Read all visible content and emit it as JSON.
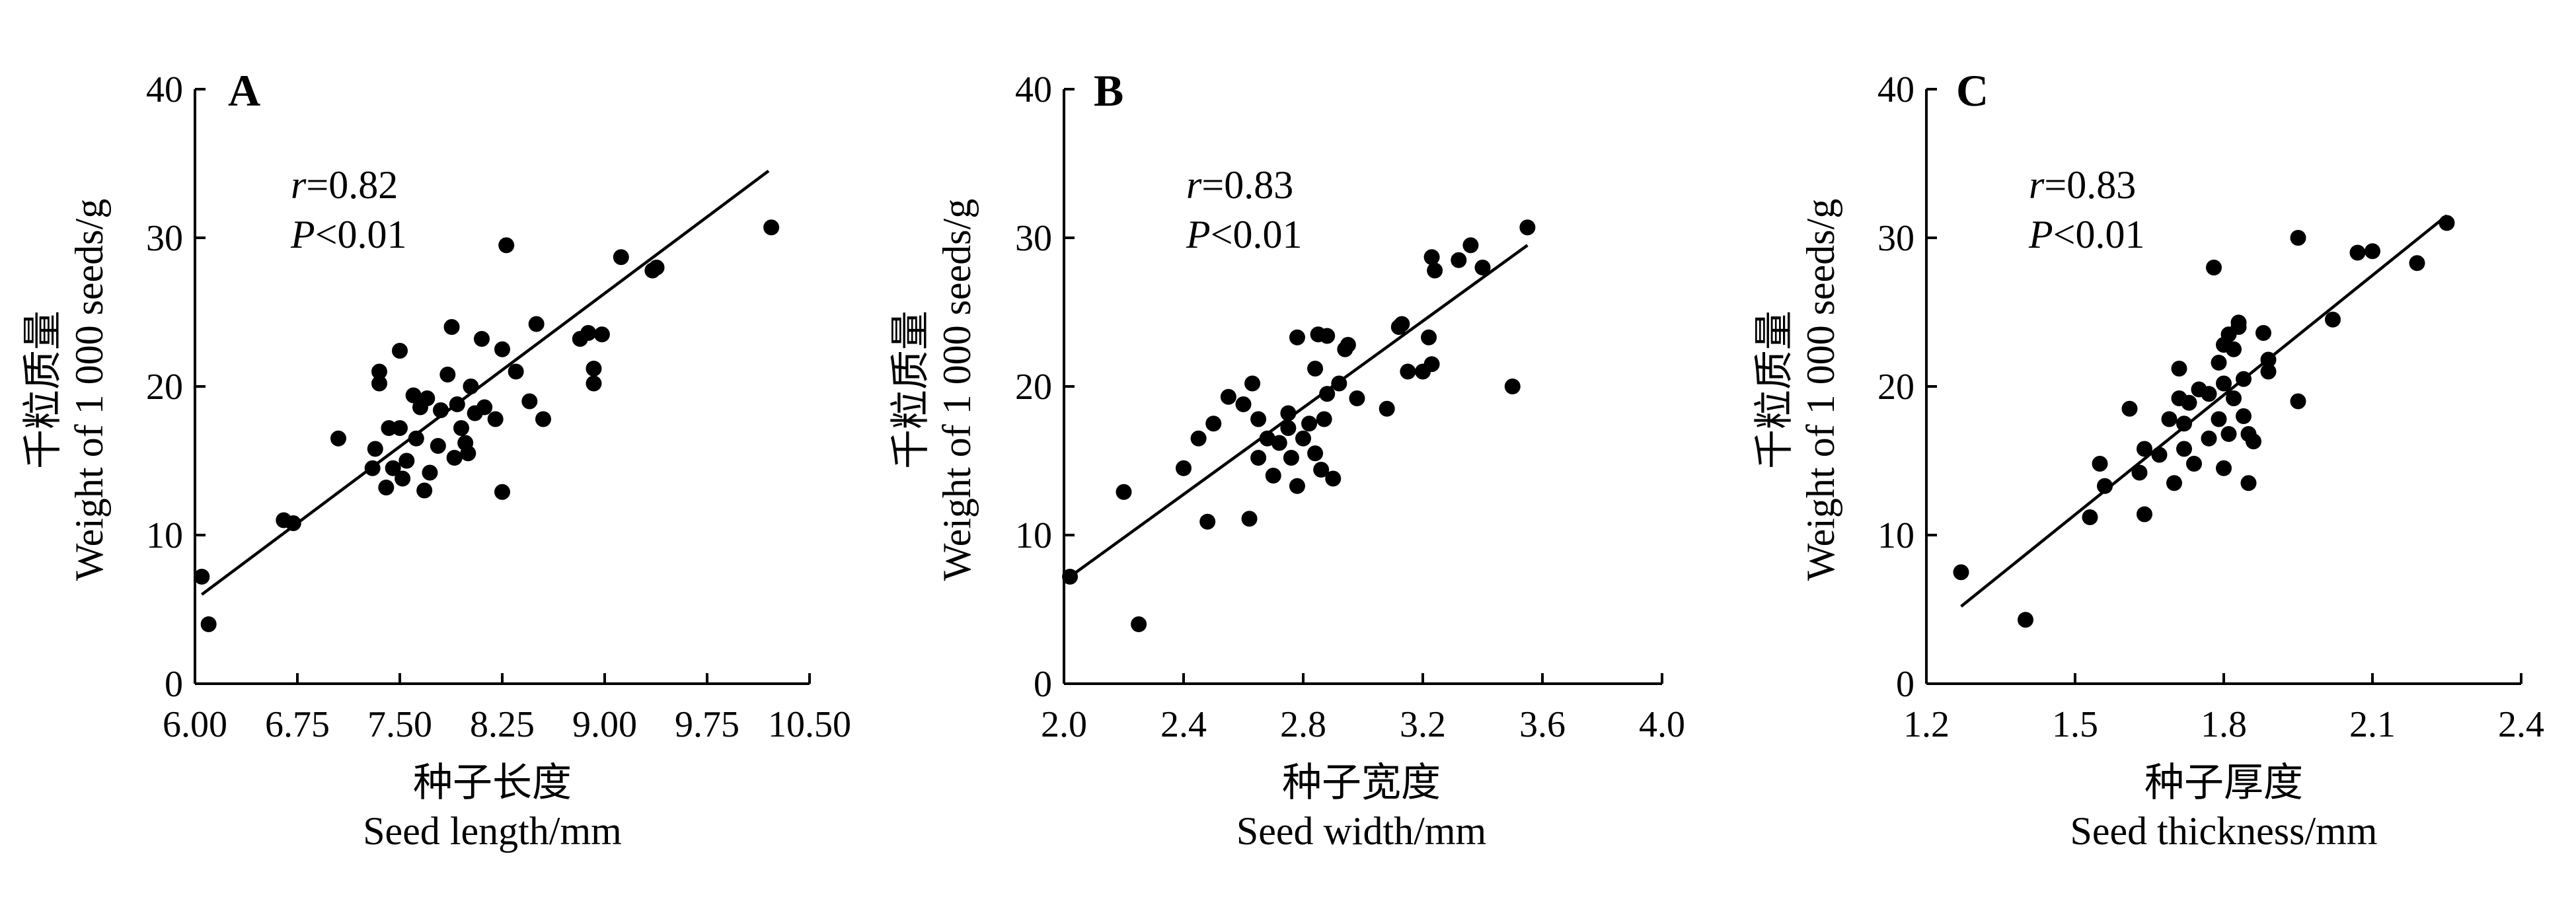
{
  "chart_data": [
    {
      "type": "scatter",
      "panel_label": "A",
      "ylabel_cn": "千粒质量",
      "ylabel_en": "Weight of 1 000 seeds/g",
      "xlabel_cn": "种子长度",
      "xlabel_en": "Seed length/mm",
      "r_symbol": "r",
      "r_value": "=0.82",
      "p_symbol": "P",
      "p_value": "<0.01",
      "xlim": [
        6.0,
        10.5
      ],
      "ylim": [
        0,
        40
      ],
      "xticks": [
        "6.00",
        "6.75",
        "7.50",
        "8.25",
        "9.00",
        "9.75",
        "10.50"
      ],
      "yticks": [
        "0",
        "10",
        "20",
        "30",
        "40"
      ],
      "fit": {
        "x": [
          6.05,
          10.2
        ],
        "y": [
          6.0,
          34.5
        ]
      },
      "points": [
        [
          6.05,
          7.2
        ],
        [
          6.1,
          4.0
        ],
        [
          6.65,
          11.0
        ],
        [
          6.72,
          10.8
        ],
        [
          7.05,
          16.5
        ],
        [
          7.3,
          14.5
        ],
        [
          7.32,
          15.8
        ],
        [
          7.35,
          21.0
        ],
        [
          7.35,
          20.2
        ],
        [
          7.4,
          13.2
        ],
        [
          7.42,
          17.2
        ],
        [
          7.45,
          14.5
        ],
        [
          7.5,
          22.4
        ],
        [
          7.5,
          17.2
        ],
        [
          7.52,
          13.8
        ],
        [
          7.55,
          15.0
        ],
        [
          7.6,
          19.4
        ],
        [
          7.62,
          16.5
        ],
        [
          7.65,
          18.6
        ],
        [
          7.68,
          13.0
        ],
        [
          7.7,
          19.2
        ],
        [
          7.72,
          14.2
        ],
        [
          7.78,
          16.0
        ],
        [
          7.8,
          18.4
        ],
        [
          7.85,
          20.8
        ],
        [
          7.88,
          24.0
        ],
        [
          7.9,
          15.2
        ],
        [
          7.92,
          18.8
        ],
        [
          7.95,
          17.2
        ],
        [
          7.98,
          16.2
        ],
        [
          8.0,
          15.5
        ],
        [
          8.02,
          20.0
        ],
        [
          8.05,
          18.2
        ],
        [
          8.1,
          23.2
        ],
        [
          8.12,
          18.6
        ],
        [
          8.2,
          17.8
        ],
        [
          8.25,
          22.5
        ],
        [
          8.25,
          12.9
        ],
        [
          8.28,
          29.5
        ],
        [
          8.35,
          21.0
        ],
        [
          8.45,
          19.0
        ],
        [
          8.5,
          24.2
        ],
        [
          8.55,
          17.8
        ],
        [
          8.82,
          23.2
        ],
        [
          8.88,
          23.6
        ],
        [
          8.92,
          20.2
        ],
        [
          8.92,
          21.2
        ],
        [
          8.98,
          23.5
        ],
        [
          9.12,
          28.7
        ],
        [
          9.35,
          27.8
        ],
        [
          9.38,
          28.0
        ],
        [
          10.22,
          30.7
        ]
      ]
    },
    {
      "type": "scatter",
      "panel_label": "B",
      "ylabel_cn": "千粒质量",
      "ylabel_en": "Weight of 1 000 seeds/g",
      "xlabel_cn": "种子宽度",
      "xlabel_en": "Seed width/mm",
      "r_symbol": "r",
      "r_value": "=0.83",
      "p_symbol": "P",
      "p_value": "<0.01",
      "xlim": [
        2.0,
        4.0
      ],
      "ylim": [
        0,
        40
      ],
      "xticks": [
        "2.0",
        "2.4",
        "2.8",
        "3.2",
        "3.6",
        "4.0"
      ],
      "yticks": [
        "0",
        "10",
        "20",
        "30",
        "40"
      ],
      "fit": {
        "x": [
          2.02,
          3.55
        ],
        "y": [
          7.2,
          29.5
        ]
      },
      "points": [
        [
          2.02,
          7.2
        ],
        [
          2.2,
          12.9
        ],
        [
          2.25,
          4.0
        ],
        [
          2.4,
          14.5
        ],
        [
          2.45,
          16.5
        ],
        [
          2.48,
          10.9
        ],
        [
          2.5,
          17.5
        ],
        [
          2.55,
          19.3
        ],
        [
          2.6,
          18.8
        ],
        [
          2.62,
          11.1
        ],
        [
          2.63,
          20.2
        ],
        [
          2.65,
          15.2
        ],
        [
          2.65,
          17.8
        ],
        [
          2.68,
          16.5
        ],
        [
          2.7,
          14.0
        ],
        [
          2.72,
          16.2
        ],
        [
          2.75,
          18.2
        ],
        [
          2.75,
          17.2
        ],
        [
          2.76,
          15.2
        ],
        [
          2.78,
          23.3
        ],
        [
          2.78,
          13.3
        ],
        [
          2.8,
          16.5
        ],
        [
          2.82,
          17.5
        ],
        [
          2.84,
          21.2
        ],
        [
          2.84,
          15.5
        ],
        [
          2.85,
          23.5
        ],
        [
          2.86,
          14.4
        ],
        [
          2.87,
          17.8
        ],
        [
          2.88,
          19.5
        ],
        [
          2.88,
          23.4
        ],
        [
          2.9,
          13.8
        ],
        [
          2.92,
          20.2
        ],
        [
          2.94,
          22.5
        ],
        [
          2.95,
          22.8
        ],
        [
          2.98,
          19.2
        ],
        [
          3.08,
          18.5
        ],
        [
          3.12,
          24.0
        ],
        [
          3.13,
          24.2
        ],
        [
          3.15,
          21.0
        ],
        [
          3.2,
          21.0
        ],
        [
          3.22,
          23.3
        ],
        [
          3.23,
          21.5
        ],
        [
          3.23,
          28.7
        ],
        [
          3.24,
          27.8
        ],
        [
          3.32,
          28.5
        ],
        [
          3.36,
          29.5
        ],
        [
          3.4,
          28.0
        ],
        [
          3.5,
          20.0
        ],
        [
          3.55,
          30.7
        ]
      ]
    },
    {
      "type": "scatter",
      "panel_label": "C",
      "ylabel_cn": "千粒质量",
      "ylabel_en": "Weight of 1 000 seeds/g",
      "xlabel_cn": "种子厚度",
      "xlabel_en": "Seed thickness/mm",
      "r_symbol": "r",
      "r_value": "=0.83",
      "p_symbol": "P",
      "p_value": "<0.01",
      "xlim": [
        1.2,
        2.4
      ],
      "ylim": [
        0,
        40
      ],
      "xticks": [
        "1.2",
        "1.5",
        "1.8",
        "2.1",
        "2.4"
      ],
      "yticks": [
        "0",
        "10",
        "20",
        "30",
        "40"
      ],
      "fit": {
        "x": [
          1.27,
          2.25
        ],
        "y": [
          5.2,
          31.5
        ]
      },
      "points": [
        [
          1.27,
          7.5
        ],
        [
          1.4,
          4.3
        ],
        [
          1.53,
          11.2
        ],
        [
          1.55,
          14.8
        ],
        [
          1.56,
          13.3
        ],
        [
          1.61,
          18.5
        ],
        [
          1.63,
          14.2
        ],
        [
          1.64,
          11.4
        ],
        [
          1.64,
          15.8
        ],
        [
          1.67,
          15.4
        ],
        [
          1.69,
          17.8
        ],
        [
          1.7,
          13.5
        ],
        [
          1.71,
          19.2
        ],
        [
          1.71,
          21.2
        ],
        [
          1.72,
          15.8
        ],
        [
          1.72,
          17.5
        ],
        [
          1.73,
          18.9
        ],
        [
          1.74,
          14.8
        ],
        [
          1.75,
          19.8
        ],
        [
          1.77,
          16.5
        ],
        [
          1.77,
          19.5
        ],
        [
          1.78,
          28.0
        ],
        [
          1.79,
          21.6
        ],
        [
          1.79,
          17.8
        ],
        [
          1.8,
          14.5
        ],
        [
          1.8,
          22.8
        ],
        [
          1.8,
          20.2
        ],
        [
          1.81,
          23.5
        ],
        [
          1.81,
          16.8
        ],
        [
          1.82,
          19.2
        ],
        [
          1.82,
          22.5
        ],
        [
          1.83,
          24.3
        ],
        [
          1.83,
          24.0
        ],
        [
          1.84,
          18.0
        ],
        [
          1.84,
          20.5
        ],
        [
          1.85,
          13.5
        ],
        [
          1.85,
          16.8
        ],
        [
          1.86,
          16.3
        ],
        [
          1.88,
          23.6
        ],
        [
          1.89,
          21.0
        ],
        [
          1.89,
          21.8
        ],
        [
          1.95,
          30.0
        ],
        [
          1.95,
          19.0
        ],
        [
          2.02,
          24.5
        ],
        [
          2.07,
          29.0
        ],
        [
          2.1,
          29.1
        ],
        [
          2.19,
          28.3
        ],
        [
          2.25,
          31.0
        ]
      ]
    }
  ]
}
